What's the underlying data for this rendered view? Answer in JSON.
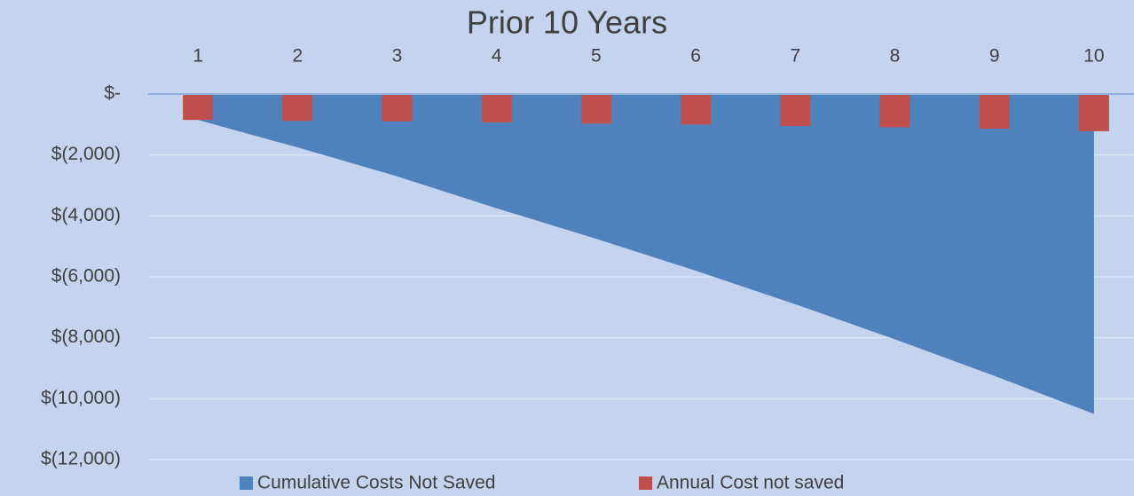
{
  "chart_data": {
    "type": "area_bar",
    "title": "Prior 10 Years",
    "categories": [
      "1",
      "2",
      "3",
      "4",
      "5",
      "6",
      "7",
      "8",
      "9",
      "10"
    ],
    "series": [
      {
        "name": "Cumulative Costs Not Saved",
        "color": "#4f81bd",
        "kind": "area",
        "values": [
          -850,
          -1750,
          -2700,
          -3750,
          -4750,
          -5800,
          -6900,
          -8050,
          -9250,
          -10500
        ]
      },
      {
        "name": "Annual Cost not saved",
        "color": "#c0504d",
        "kind": "bar",
        "values": [
          -850,
          -880,
          -900,
          -930,
          -970,
          -1000,
          -1050,
          -1090,
          -1140,
          -1220
        ]
      }
    ],
    "ylim": [
      -12000,
      0
    ],
    "yticks": [
      {
        "value": 0,
        "label": "$-"
      },
      {
        "value": -2000,
        "label": "$(2,000)"
      },
      {
        "value": -4000,
        "label": "$(4,000)"
      },
      {
        "value": -6000,
        "label": "$(6,000)"
      },
      {
        "value": -8000,
        "label": "$(8,000)"
      },
      {
        "value": -10000,
        "label": "$(10,000)"
      },
      {
        "value": -12000,
        "label": "$(12,000)"
      }
    ],
    "grid": true,
    "legend": "bottom"
  }
}
